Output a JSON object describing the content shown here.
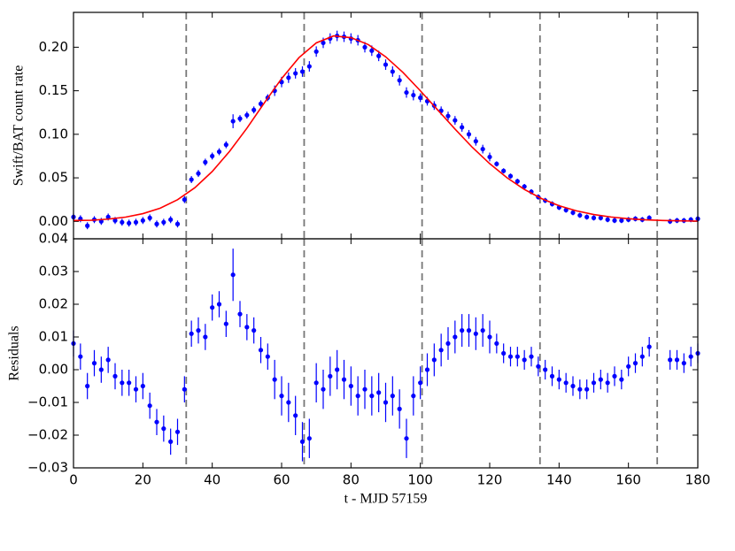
{
  "chart_data": [
    {
      "type": "errorbar",
      "ylabel": "Swift/BAT count rate",
      "ylim": [
        -0.02,
        0.24
      ],
      "xlim": [
        0,
        180
      ],
      "yticks": [
        {
          "value": 0,
          "label": "0.00"
        },
        {
          "value": 0.05,
          "label": "0.05"
        },
        {
          "value": 0.1,
          "label": "0.10"
        },
        {
          "value": 0.15,
          "label": "0.15"
        },
        {
          "value": 0.2,
          "label": "0.20"
        }
      ],
      "xticks": [
        0,
        20,
        40,
        60,
        80,
        100,
        120,
        140,
        160,
        180
      ],
      "show_xtick_labels": false,
      "vlines": [
        32.5,
        66.5,
        100.5,
        134.5,
        168.3
      ],
      "x": [
        0,
        2,
        4,
        6,
        8,
        10,
        12,
        14,
        16,
        18,
        20,
        22,
        24,
        26,
        28,
        30,
        32,
        34,
        36,
        38,
        40,
        42,
        44,
        46,
        48,
        50,
        52,
        54,
        56,
        58,
        60,
        62,
        64,
        66,
        68,
        70,
        72,
        74,
        76,
        78,
        80,
        82,
        84,
        86,
        88,
        90,
        92,
        94,
        96,
        98,
        100,
        102,
        104,
        106,
        108,
        110,
        112,
        114,
        116,
        118,
        120,
        122,
        124,
        126,
        128,
        130,
        132,
        134,
        136,
        138,
        140,
        142,
        144,
        146,
        148,
        150,
        152,
        154,
        156,
        158,
        160,
        162,
        164,
        166,
        172,
        174,
        176,
        178,
        180
      ],
      "series": [
        {
          "color": "#0000ff",
          "values": [
            0.005,
            0.003,
            -0.005,
            0.002,
            0.0,
            0.005,
            0.001,
            -0.001,
            -0.002,
            -0.001,
            0.001,
            0.004,
            -0.003,
            -0.001,
            0.002,
            -0.003,
            0.025,
            0.048,
            0.055,
            0.068,
            0.075,
            0.08,
            0.088,
            0.115,
            0.118,
            0.122,
            0.128,
            0.135,
            0.142,
            0.15,
            0.16,
            0.165,
            0.17,
            0.172,
            0.178,
            0.195,
            0.205,
            0.21,
            0.213,
            0.212,
            0.21,
            0.208,
            0.2,
            0.196,
            0.19,
            0.18,
            0.172,
            0.162,
            0.148,
            0.145,
            0.142,
            0.138,
            0.133,
            0.127,
            0.121,
            0.116,
            0.108,
            0.1,
            0.092,
            0.083,
            0.074,
            0.066,
            0.058,
            0.052,
            0.046,
            0.04,
            0.034,
            0.028,
            0.024,
            0.02,
            0.016,
            0.013,
            0.01,
            0.007,
            0.005,
            0.004,
            0.004,
            0.002,
            0.001,
            0.001,
            0.002,
            0.003,
            0.002,
            0.004,
            0.0,
            0.001,
            0.001,
            0.002,
            0.003
          ],
          "errors": [
            0.004,
            0.004,
            0.004,
            0.004,
            0.004,
            0.004,
            0.004,
            0.004,
            0.004,
            0.004,
            0.004,
            0.004,
            0.004,
            0.004,
            0.004,
            0.004,
            0.004,
            0.004,
            0.004,
            0.004,
            0.004,
            0.004,
            0.004,
            0.008,
            0.004,
            0.004,
            0.004,
            0.004,
            0.004,
            0.006,
            0.006,
            0.006,
            0.006,
            0.006,
            0.006,
            0.006,
            0.006,
            0.006,
            0.006,
            0.006,
            0.006,
            0.006,
            0.006,
            0.006,
            0.006,
            0.006,
            0.006,
            0.006,
            0.006,
            0.006,
            0.005,
            0.005,
            0.005,
            0.005,
            0.005,
            0.005,
            0.005,
            0.005,
            0.005,
            0.005,
            0.005,
            0.003,
            0.003,
            0.003,
            0.003,
            0.003,
            0.003,
            0.003,
            0.003,
            0.003,
            0.003,
            0.003,
            0.003,
            0.003,
            0.003,
            0.003,
            0.003,
            0.003,
            0.003,
            0.003,
            0.003,
            0.003,
            0.003,
            0.003,
            0.003,
            0.003,
            0.003,
            0.003,
            0.003
          ]
        },
        {
          "style": "line",
          "color": "#ff0000",
          "x": [
            0,
            5,
            10,
            15,
            20,
            25,
            30,
            35,
            40,
            45,
            50,
            55,
            60,
            65,
            70,
            75,
            80,
            85,
            90,
            95,
            100,
            105,
            110,
            115,
            120,
            125,
            130,
            135,
            140,
            145,
            150,
            155,
            160,
            165,
            170,
            175,
            180
          ],
          "values": [
            0.001,
            0.0013,
            0.0026,
            0.0049,
            0.0089,
            0.0152,
            0.0249,
            0.0387,
            0.0573,
            0.0804,
            0.107,
            0.136,
            0.164,
            0.188,
            0.205,
            0.213,
            0.211,
            0.203,
            0.189,
            0.171,
            0.15,
            0.128,
            0.106,
            0.085,
            0.0663,
            0.0501,
            0.0367,
            0.0261,
            0.018,
            0.0121,
            0.0079,
            0.005,
            0.003,
            0.0018,
            0.001,
            0.0006,
            0.0003
          ]
        }
      ]
    },
    {
      "type": "errorbar",
      "ylabel": "Residuals",
      "xlabel": "t - MJD 57159",
      "ylim": [
        -0.03,
        0.04
      ],
      "xlim": [
        0,
        180
      ],
      "yticks": [
        {
          "value": -0.03,
          "label": "−0.03"
        },
        {
          "value": -0.02,
          "label": "−0.02"
        },
        {
          "value": -0.01,
          "label": "−0.01"
        },
        {
          "value": 0,
          "label": "0.00"
        },
        {
          "value": 0.01,
          "label": "0.01"
        },
        {
          "value": 0.02,
          "label": "0.02"
        },
        {
          "value": 0.03,
          "label": "0.03"
        },
        {
          "value": 0.04,
          "label": "0.04"
        }
      ],
      "xticks": [
        0,
        20,
        40,
        60,
        80,
        100,
        120,
        140,
        160,
        180
      ],
      "show_xtick_labels": true,
      "vlines": [
        32.5,
        66.5,
        100.5,
        134.5,
        168.3
      ],
      "x": [
        0,
        2,
        4,
        6,
        8,
        10,
        12,
        14,
        16,
        18,
        20,
        22,
        24,
        26,
        28,
        30,
        32,
        34,
        36,
        38,
        40,
        42,
        44,
        46,
        48,
        50,
        52,
        54,
        56,
        58,
        60,
        62,
        64,
        66,
        68,
        70,
        72,
        74,
        76,
        78,
        80,
        82,
        84,
        86,
        88,
        90,
        92,
        94,
        96,
        98,
        100,
        102,
        104,
        106,
        108,
        110,
        112,
        114,
        116,
        118,
        120,
        122,
        124,
        126,
        128,
        130,
        132,
        134,
        136,
        138,
        140,
        142,
        144,
        146,
        148,
        150,
        152,
        154,
        156,
        158,
        160,
        162,
        164,
        166,
        172,
        174,
        176,
        178,
        180
      ],
      "series": [
        {
          "color": "#0000ff",
          "values": [
            0.008,
            0.004,
            -0.005,
            0.002,
            0.0,
            0.003,
            -0.002,
            -0.004,
            -0.004,
            -0.006,
            -0.005,
            -0.011,
            -0.016,
            -0.018,
            -0.022,
            -0.019,
            -0.006,
            0.011,
            0.012,
            0.01,
            0.019,
            0.02,
            0.014,
            0.029,
            0.017,
            0.013,
            0.012,
            0.006,
            0.004,
            -0.003,
            -0.008,
            -0.01,
            -0.014,
            -0.022,
            -0.021,
            -0.004,
            -0.006,
            -0.002,
            0.0,
            -0.003,
            -0.005,
            -0.008,
            -0.006,
            -0.008,
            -0.007,
            -0.01,
            -0.008,
            -0.012,
            -0.021,
            -0.008,
            -0.004,
            0.0,
            0.003,
            0.006,
            0.008,
            0.01,
            0.012,
            0.012,
            0.011,
            0.012,
            0.01,
            0.008,
            0.005,
            0.004,
            0.004,
            0.003,
            0.004,
            0.001,
            0.0,
            -0.002,
            -0.003,
            -0.004,
            -0.005,
            -0.006,
            -0.006,
            -0.004,
            -0.003,
            -0.004,
            -0.002,
            -0.003,
            0.001,
            0.002,
            0.004,
            0.007,
            0.003,
            0.003,
            0.002,
            0.004,
            0.005
          ],
          "errors": [
            0.004,
            0.004,
            0.004,
            0.004,
            0.004,
            0.004,
            0.004,
            0.004,
            0.004,
            0.004,
            0.004,
            0.004,
            0.004,
            0.004,
            0.004,
            0.004,
            0.004,
            0.004,
            0.004,
            0.004,
            0.004,
            0.004,
            0.004,
            0.008,
            0.004,
            0.004,
            0.004,
            0.004,
            0.004,
            0.006,
            0.006,
            0.006,
            0.006,
            0.006,
            0.006,
            0.006,
            0.006,
            0.006,
            0.006,
            0.006,
            0.006,
            0.006,
            0.006,
            0.006,
            0.006,
            0.006,
            0.006,
            0.006,
            0.006,
            0.006,
            0.005,
            0.005,
            0.005,
            0.005,
            0.005,
            0.005,
            0.005,
            0.005,
            0.005,
            0.005,
            0.005,
            0.003,
            0.003,
            0.003,
            0.003,
            0.003,
            0.003,
            0.003,
            0.003,
            0.003,
            0.003,
            0.003,
            0.003,
            0.003,
            0.003,
            0.003,
            0.003,
            0.003,
            0.003,
            0.003,
            0.003,
            0.003,
            0.003,
            0.003,
            0.003,
            0.003,
            0.003,
            0.003,
            0.003
          ]
        }
      ]
    }
  ]
}
